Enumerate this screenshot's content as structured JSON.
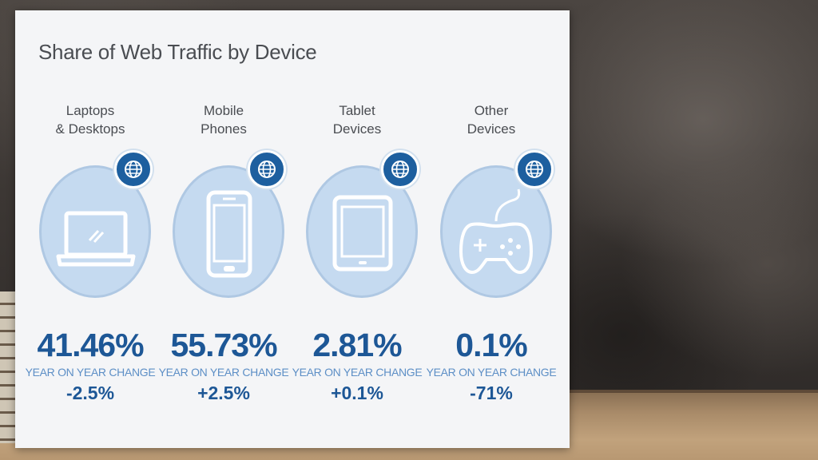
{
  "chart_data": {
    "type": "table",
    "title": "Share of Web Traffic by Device",
    "categories": [
      "Laptops\n& Desktops",
      "Mobile\nPhones",
      "Tablet\nDevices",
      "Other\nDevices"
    ],
    "series": [
      {
        "values": [
          41.46,
          55.73,
          2.81,
          0.1
        ]
      },
      {
        "name": "YEAR ON YEAR CHANGE",
        "values": [
          -2.5,
          2.5,
          0.1,
          -71
        ]
      }
    ],
    "items": [
      {
        "label": "Laptops\n& Desktops",
        "icon": "laptop-icon",
        "share": "41.46%",
        "change_label": "YEAR ON YEAR CHANGE",
        "change": "-2.5%"
      },
      {
        "label": "Mobile\nPhones",
        "icon": "mobile-phone-icon",
        "share": "55.73%",
        "change_label": "YEAR ON YEAR CHANGE",
        "change": "+2.5%"
      },
      {
        "label": "Tablet\nDevices",
        "icon": "tablet-icon",
        "share": "2.81%",
        "change_label": "YEAR ON YEAR CHANGE",
        "change": "+0.1%"
      },
      {
        "label": "Other\nDevices",
        "icon": "gamepad-icon",
        "share": "0.1%",
        "change_label": "YEAR ON YEAR CHANGE",
        "change": "-71%"
      }
    ],
    "badge_icon": "globe-icon"
  },
  "colors": {
    "primary_blue": "#1d5796",
    "light_blue_text": "#5d8fc6",
    "circle_fill": "#c5daf0",
    "badge": "#1d5f9f",
    "card": "#f4f5f7",
    "title_gray": "#4a4d52"
  }
}
